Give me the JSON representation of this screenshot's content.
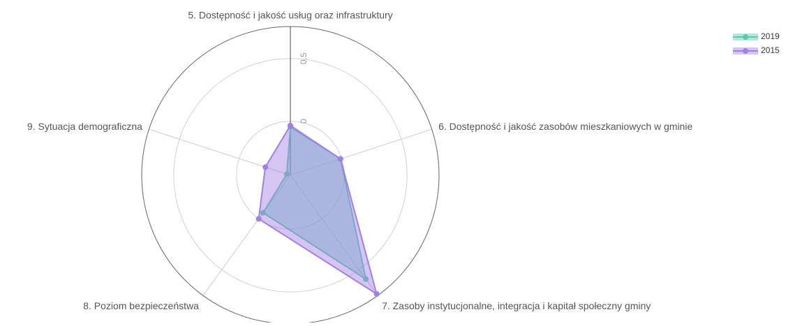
{
  "chart_data": {
    "type": "radar",
    "categories": [
      "5. Dostępność i jakość usług oraz infrastruktury",
      "6. Dostępność i jakość zasobów mieszkaniowych w gminie",
      "7. Zasoby instytucjonalne, integracja i kapitał społeczny gminy",
      "8. Poziom bezpieczeństwa",
      "9. Sytuacja demograficzna"
    ],
    "series": [
      {
        "name": "2019",
        "color": "#5cc8b2",
        "values": [
          -0.045,
          -0.01,
          0.594,
          -0.06,
          -0.4
        ]
      },
      {
        "name": "2015",
        "color": "#a27fe3",
        "values": [
          -0.034,
          -0.01,
          0.74,
          0.0,
          -0.22
        ]
      }
    ],
    "rlim": [
      -0.43,
      0.755
    ],
    "rticks": [
      0,
      0.5
    ],
    "grid": true,
    "legend": "top-right"
  }
}
